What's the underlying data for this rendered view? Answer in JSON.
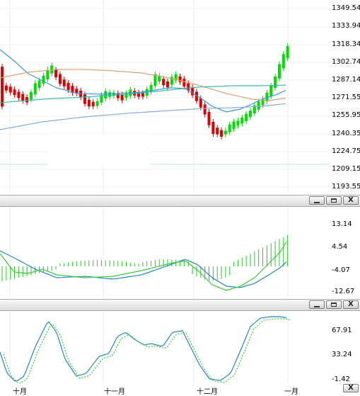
{
  "main_pane": {
    "price_labels": [
      "1349.54",
      "1333.94",
      "1318.34",
      "1302.74",
      "1287.14",
      "1271.55",
      "1255.95",
      "1240.35",
      "1224.75",
      "1209.15",
      "1193.55"
    ]
  },
  "macd_pane": {
    "labels": [
      "13.14",
      "4.54",
      "-4.07",
      "-12.67"
    ]
  },
  "osc_pane": {
    "labels": [
      "67.91",
      "33.24",
      "-1.42"
    ]
  },
  "x_axis": {
    "labels": [
      "十月",
      "十一月",
      "十二月",
      "一月"
    ]
  },
  "window_buttons": {
    "minimize": "_",
    "maximize": "□",
    "close": "X"
  },
  "colors": {
    "up_candle": "#00dd00",
    "down_candle": "#dd0000",
    "ma_fast": "#3399dd",
    "ma_mid": "#e0a070",
    "ma_long": "#88aadd",
    "ma_cyan": "#33bbaa",
    "macd_hist": "#22cc22",
    "osc_line": "#2288bb",
    "osc_signal": "#33cc33"
  }
}
